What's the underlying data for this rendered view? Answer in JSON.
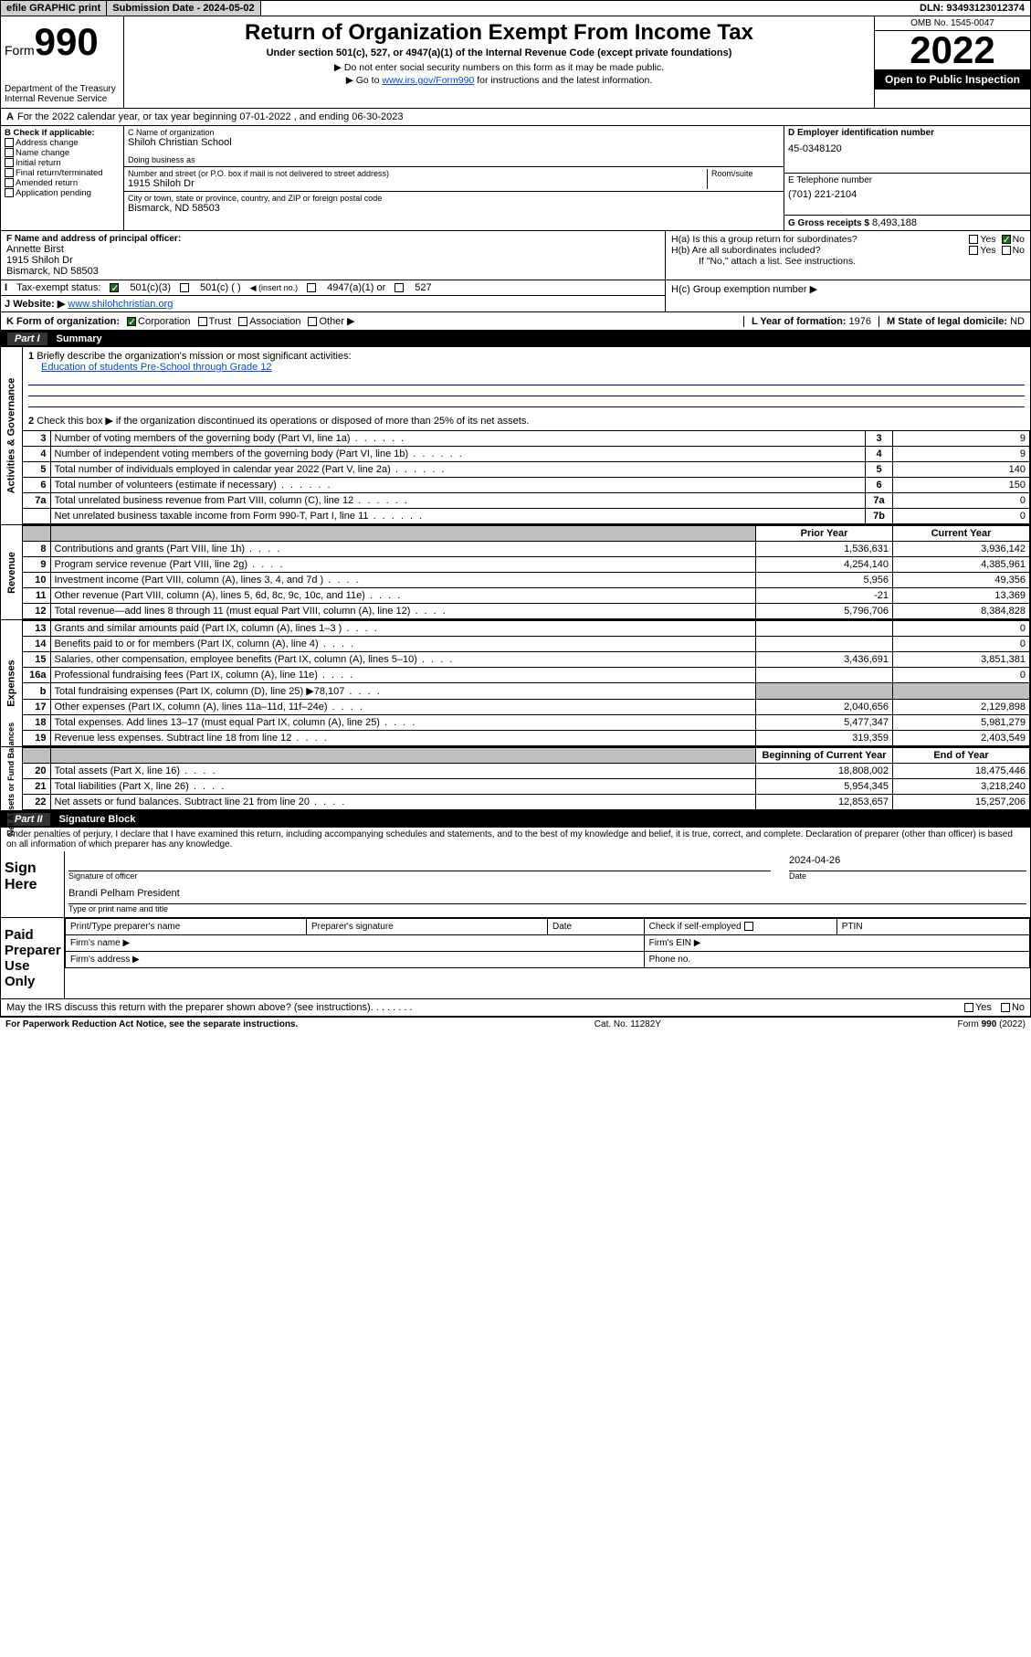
{
  "topbar": {
    "efile": "efile GRAPHIC print",
    "sub_label": "Submission Date - 2024-05-02",
    "dln": "DLN: 93493123012374"
  },
  "header": {
    "form": "Form",
    "formno": "990",
    "dept": "Department of the Treasury",
    "irs": "Internal Revenue Service",
    "title": "Return of Organization Exempt From Income Tax",
    "sub1": "Under section 501(c), 527, or 4947(a)(1) of the Internal Revenue Code (except private foundations)",
    "sub2": "Do not enter social security numbers on this form as it may be made public.",
    "sub3_pre": "Go to ",
    "sub3_link": "www.irs.gov/Form990",
    "sub3_post": " for instructions and the latest information.",
    "omb": "OMB No. 1545-0047",
    "year": "2022",
    "open": "Open to Public Inspection"
  },
  "lineA": "For the 2022 calendar year, or tax year beginning 07-01-2022   , and ending 06-30-2023",
  "boxB": {
    "hdr": "B Check if applicable:",
    "opts": [
      "Address change",
      "Name change",
      "Initial return",
      "Final return/terminated",
      "Amended return",
      "Application pending"
    ]
  },
  "boxC": {
    "lbl": "C Name of organization",
    "name": "Shiloh Christian School",
    "dba": "Doing business as",
    "addr_lbl": "Number and street (or P.O. box if mail is not delivered to street address)",
    "room": "Room/suite",
    "addr": "1915 Shiloh Dr",
    "city_lbl": "City or town, state or province, country, and ZIP or foreign postal code",
    "city": "Bismarck, ND  58503"
  },
  "boxD": {
    "lbl": "D Employer identification number",
    "val": "45-0348120"
  },
  "boxE": {
    "lbl": "E Telephone number",
    "val": "(701) 221-2104"
  },
  "boxG": {
    "lbl": "G Gross receipts $",
    "val": "8,493,188"
  },
  "boxF": {
    "lbl": "F Name and address of principal officer:",
    "name": "Annette Birst",
    "l1": "1915 Shiloh Dr",
    "l2": "Bismarck, ND  58503"
  },
  "boxH": {
    "a": "H(a)  Is this a group return for subordinates?",
    "b": "H(b)  Are all subordinates included?",
    "note": "If \"No,\" attach a list. See instructions.",
    "c": "H(c)  Group exemption number ▶",
    "yes": "Yes",
    "no": "No"
  },
  "rowI": {
    "lbl": "Tax-exempt status:",
    "o1": "501(c)(3)",
    "o2": "501(c) (  )",
    "o2b": "◀ (insert no.)",
    "o3": "4947(a)(1) or",
    "o4": "527"
  },
  "rowJ": {
    "lbl": "Website: ▶",
    "val": "www.shilohchristian.org"
  },
  "rowK": {
    "lbl": "K Form of organization:",
    "opts": [
      "Corporation",
      "Trust",
      "Association",
      "Other ▶"
    ]
  },
  "rowL": {
    "lbl": "L Year of formation:",
    "val": "1976"
  },
  "rowM": {
    "lbl": "M State of legal domicile:",
    "val": "ND"
  },
  "part1": {
    "pt": "Part I",
    "title": "Summary"
  },
  "summary": {
    "l1": "Briefly describe the organization's mission or most significant activities:",
    "mission": "Education of students Pre-School through Grade 12",
    "l2": "Check this box ▶        if the organization discontinued its operations or disposed of more than 25% of its net assets.",
    "rows_ag": [
      {
        "n": "3",
        "d": "Number of voting members of the governing body (Part VI, line 1a)",
        "b": "3",
        "v": "9"
      },
      {
        "n": "4",
        "d": "Number of independent voting members of the governing body (Part VI, line 1b)",
        "b": "4",
        "v": "9"
      },
      {
        "n": "5",
        "d": "Total number of individuals employed in calendar year 2022 (Part V, line 2a)",
        "b": "5",
        "v": "140"
      },
      {
        "n": "6",
        "d": "Total number of volunteers (estimate if necessary)",
        "b": "6",
        "v": "150"
      },
      {
        "n": "7a",
        "d": "Total unrelated business revenue from Part VIII, column (C), line 12",
        "b": "7a",
        "v": "0"
      },
      {
        "n": "",
        "d": "Net unrelated business taxable income from Form 990-T, Part I, line 11",
        "b": "7b",
        "v": "0"
      }
    ],
    "yr_prior": "Prior Year",
    "yr_curr": "Current Year",
    "rows_rev": [
      {
        "n": "8",
        "d": "Contributions and grants (Part VIII, line 1h)",
        "p": "1,536,631",
        "c": "3,936,142"
      },
      {
        "n": "9",
        "d": "Program service revenue (Part VIII, line 2g)",
        "p": "4,254,140",
        "c": "4,385,961"
      },
      {
        "n": "10",
        "d": "Investment income (Part VIII, column (A), lines 3, 4, and 7d )",
        "p": "5,956",
        "c": "49,356"
      },
      {
        "n": "11",
        "d": "Other revenue (Part VIII, column (A), lines 5, 6d, 8c, 9c, 10c, and 11e)",
        "p": "-21",
        "c": "13,369"
      },
      {
        "n": "12",
        "d": "Total revenue—add lines 8 through 11 (must equal Part VIII, column (A), line 12)",
        "p": "5,796,706",
        "c": "8,384,828"
      }
    ],
    "rows_exp": [
      {
        "n": "13",
        "d": "Grants and similar amounts paid (Part IX, column (A), lines 1–3 )",
        "p": "",
        "c": "0"
      },
      {
        "n": "14",
        "d": "Benefits paid to or for members (Part IX, column (A), line 4)",
        "p": "",
        "c": "0"
      },
      {
        "n": "15",
        "d": "Salaries, other compensation, employee benefits (Part IX, column (A), lines 5–10)",
        "p": "3,436,691",
        "c": "3,851,381"
      },
      {
        "n": "16a",
        "d": "Professional fundraising fees (Part IX, column (A), line 11e)",
        "p": "",
        "c": "0"
      },
      {
        "n": "b",
        "d": "Total fundraising expenses (Part IX, column (D), line 25) ▶78,107",
        "p": "shade",
        "c": "shade"
      },
      {
        "n": "17",
        "d": "Other expenses (Part IX, column (A), lines 11a–11d, 11f–24e)",
        "p": "2,040,656",
        "c": "2,129,898"
      },
      {
        "n": "18",
        "d": "Total expenses. Add lines 13–17 (must equal Part IX, column (A), line 25)",
        "p": "5,477,347",
        "c": "5,981,279"
      },
      {
        "n": "19",
        "d": "Revenue less expenses. Subtract line 18 from line 12",
        "p": "319,359",
        "c": "2,403,549"
      }
    ],
    "boy": "Beginning of Current Year",
    "eoy": "End of Year",
    "rows_na": [
      {
        "n": "20",
        "d": "Total assets (Part X, line 16)",
        "p": "18,808,002",
        "c": "18,475,446"
      },
      {
        "n": "21",
        "d": "Total liabilities (Part X, line 26)",
        "p": "5,954,345",
        "c": "3,218,240"
      },
      {
        "n": "22",
        "d": "Net assets or fund balances. Subtract line 21 from line 20",
        "p": "12,853,657",
        "c": "15,257,206"
      }
    ]
  },
  "sidetabs": {
    "ag": "Activities & Governance",
    "rev": "Revenue",
    "exp": "Expenses",
    "na": "Net Assets or\nFund Balances"
  },
  "part2": {
    "pt": "Part II",
    "title": "Signature Block"
  },
  "sig": {
    "decl": "Under penalties of perjury, I declare that I have examined this return, including accompanying schedules and statements, and to the best of my knowledge and belief, it is true, correct, and complete. Declaration of preparer (other than officer) is based on all information of which preparer has any knowledge.",
    "here": "Sign Here",
    "sig_of": "Signature of officer",
    "date": "Date",
    "date_v": "2024-04-26",
    "name": "Brandi Pelham  President",
    "name_lbl": "Type or print name and title",
    "paid": "Paid Preparer Use Only",
    "pp_name": "Print/Type preparer's name",
    "pp_sig": "Preparer's signature",
    "pp_date": "Date",
    "pp_self": "Check        if self-employed",
    "pp_ptin": "PTIN",
    "firm_name": "Firm's name   ▶",
    "firm_ein": "Firm's EIN ▶",
    "firm_addr": "Firm's address ▶",
    "phone": "Phone no.",
    "may": "May the IRS discuss this return with the preparer shown above? (see instructions)"
  },
  "footer": {
    "pra": "For Paperwork Reduction Act Notice, see the separate instructions.",
    "cat": "Cat. No. 11282Y",
    "form": "Form 990 (2022)"
  }
}
